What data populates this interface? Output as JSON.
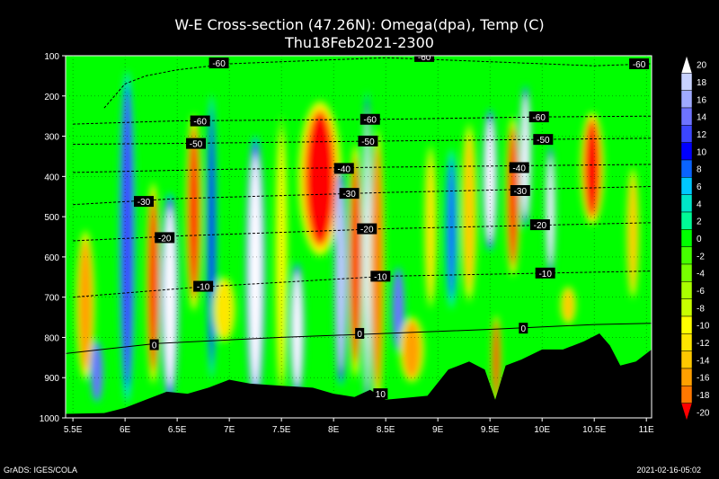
{
  "chart_data": {
    "type": "heatmap",
    "title": "W-E Cross-section (47.26N): Omega(dpa), Temp (C)",
    "subtitle": "Thu18Feb2021-2300",
    "xlabel": "",
    "ylabel": "",
    "x_ticks": [
      "5.5E",
      "6E",
      "6.5E",
      "7E",
      "7.5E",
      "8E",
      "8.5E",
      "9E",
      "9.5E",
      "10E",
      "10.5E",
      "11E"
    ],
    "x_range": [
      5.43,
      11.05
    ],
    "y_ticks": [
      100,
      200,
      300,
      400,
      500,
      600,
      700,
      800,
      900,
      1000
    ],
    "y_range": [
      1000,
      100
    ],
    "grid": true,
    "colorbar": {
      "levels": [
        20,
        18,
        16,
        14,
        12,
        10,
        8,
        6,
        4,
        2,
        0,
        -2,
        -4,
        -6,
        -8,
        -10,
        -12,
        -14,
        -16,
        -18,
        -20
      ],
      "colors": [
        "#ffffff",
        "#c8d2ff",
        "#a0aaff",
        "#6e73ff",
        "#3c46ff",
        "#0000ff",
        "#0a64ff",
        "#00c8ff",
        "#00e6c8",
        "#00fa96",
        "#00ff00",
        "#46ff00",
        "#78ff00",
        "#aaff00",
        "#c8ff00",
        "#ffff00",
        "#ffe600",
        "#ffc800",
        "#ffa000",
        "#ff7800",
        "#ff0000"
      ]
    },
    "omega_columns": [
      {
        "x": 5.62,
        "w": 0.12,
        "top": 560,
        "bottom": 880,
        "value": -16
      },
      {
        "x": 5.73,
        "w": 0.08,
        "top": 820,
        "bottom": 950,
        "value": 14
      },
      {
        "x": 6.02,
        "w": 0.1,
        "top": 200,
        "bottom": 900,
        "value": 12
      },
      {
        "x": 6.27,
        "w": 0.09,
        "top": 450,
        "bottom": 880,
        "value": -20
      },
      {
        "x": 6.43,
        "w": 0.11,
        "top": 480,
        "bottom": 920,
        "value": 20
      },
      {
        "x": 6.66,
        "w": 0.1,
        "top": 280,
        "bottom": 700,
        "value": -20
      },
      {
        "x": 6.83,
        "w": 0.06,
        "top": 250,
        "bottom": 850,
        "value": 10
      },
      {
        "x": 6.95,
        "w": 0.15,
        "top": 660,
        "bottom": 800,
        "value": -12
      },
      {
        "x": 7.25,
        "w": 0.12,
        "top": 350,
        "bottom": 920,
        "value": 20
      },
      {
        "x": 7.5,
        "w": 0.08,
        "top": 300,
        "bottom": 900,
        "value": -10
      },
      {
        "x": 7.65,
        "w": 0.09,
        "top": 640,
        "bottom": 920,
        "value": 20
      },
      {
        "x": 7.87,
        "w": 0.28,
        "top": 240,
        "bottom": 570,
        "value": -20
      },
      {
        "x": 8.07,
        "w": 0.08,
        "top": 420,
        "bottom": 880,
        "value": 18
      },
      {
        "x": 8.21,
        "w": 0.09,
        "top": 360,
        "bottom": 860,
        "value": -20
      },
      {
        "x": 8.32,
        "w": 0.05,
        "top": 250,
        "bottom": 930,
        "value": 20
      },
      {
        "x": 8.42,
        "w": 0.09,
        "top": 330,
        "bottom": 920,
        "value": -18
      },
      {
        "x": 8.62,
        "w": 0.08,
        "top": 640,
        "bottom": 820,
        "value": 14
      },
      {
        "x": 8.75,
        "w": 0.16,
        "top": 760,
        "bottom": 900,
        "value": -16
      },
      {
        "x": 8.93,
        "w": 0.08,
        "top": 350,
        "bottom": 700,
        "value": -12
      },
      {
        "x": 9.13,
        "w": 0.08,
        "top": 360,
        "bottom": 700,
        "value": 8
      },
      {
        "x": 9.3,
        "w": 0.1,
        "top": 300,
        "bottom": 680,
        "value": -14
      },
      {
        "x": 9.5,
        "w": 0.09,
        "top": 260,
        "bottom": 560,
        "value": 20
      },
      {
        "x": 9.56,
        "w": 0.06,
        "top": 760,
        "bottom": 950,
        "value": -20
      },
      {
        "x": 9.72,
        "w": 0.09,
        "top": 280,
        "bottom": 620,
        "value": -20
      },
      {
        "x": 9.84,
        "w": 0.07,
        "top": 200,
        "bottom": 500,
        "value": 20
      },
      {
        "x": 10.08,
        "w": 0.06,
        "top": 350,
        "bottom": 620,
        "value": 20
      },
      {
        "x": 10.25,
        "w": 0.1,
        "top": 680,
        "bottom": 760,
        "value": -14
      },
      {
        "x": 10.48,
        "w": 0.15,
        "top": 260,
        "bottom": 500,
        "value": -20
      },
      {
        "x": 10.87,
        "w": 0.08,
        "top": 400,
        "bottom": 680,
        "value": -14
      }
    ],
    "terrain": [
      [
        5.43,
        990
      ],
      [
        5.8,
        988
      ],
      [
        6.0,
        975
      ],
      [
        6.2,
        955
      ],
      [
        6.4,
        935
      ],
      [
        6.6,
        940
      ],
      [
        6.8,
        925
      ],
      [
        7.0,
        905
      ],
      [
        7.2,
        915
      ],
      [
        7.5,
        920
      ],
      [
        7.8,
        925
      ],
      [
        8.0,
        940
      ],
      [
        8.2,
        948
      ],
      [
        8.35,
        930
      ],
      [
        8.5,
        955
      ],
      [
        8.7,
        950
      ],
      [
        8.9,
        945
      ],
      [
        9.1,
        880
      ],
      [
        9.3,
        860
      ],
      [
        9.45,
        880
      ],
      [
        9.55,
        955
      ],
      [
        9.65,
        870
      ],
      [
        9.8,
        855
      ],
      [
        10.0,
        830
      ],
      [
        10.2,
        830
      ],
      [
        10.4,
        810
      ],
      [
        10.55,
        790
      ],
      [
        10.65,
        820
      ],
      [
        10.75,
        870
      ],
      [
        10.9,
        860
      ],
      [
        11.05,
        830
      ]
    ],
    "temp_contours": [
      {
        "label": "-60",
        "points": [
          [
            5.8,
            230
          ],
          [
            6.0,
            170
          ],
          [
            6.2,
            150
          ],
          [
            6.5,
            135
          ],
          [
            7.0,
            120
          ],
          [
            7.5,
            115
          ],
          [
            8.5,
            105
          ],
          [
            9.5,
            115
          ],
          [
            10.5,
            125
          ],
          [
            11.05,
            120
          ]
        ],
        "label_at": [
          6.9,
          118
        ]
      },
      {
        "label": "-60",
        "points": [
          [
            5.5,
            270
          ],
          [
            6.5,
            262
          ],
          [
            8.5,
            258
          ],
          [
            10.0,
            252
          ],
          [
            11.05,
            250
          ]
        ],
        "label_at": [
          6.72,
          262
        ]
      },
      {
        "label": "-50",
        "points": [
          [
            5.5,
            320
          ],
          [
            6.5,
            318
          ],
          [
            8.5,
            312
          ],
          [
            10.0,
            308
          ],
          [
            11.05,
            305
          ]
        ],
        "label_at": [
          6.68,
          318
        ]
      },
      {
        "label": "-40",
        "points": [
          [
            5.5,
            390
          ],
          [
            7.0,
            382
          ],
          [
            8.5,
            377
          ],
          [
            11.05,
            370
          ]
        ],
        "label_at": [
          8.1,
          380
        ]
      },
      {
        "label": "-30",
        "points": [
          [
            5.5,
            470
          ],
          [
            6.5,
            455
          ],
          [
            8.5,
            440
          ],
          [
            11.05,
            425
          ]
        ],
        "label_at": [
          6.18,
          462
        ]
      },
      {
        "label": "-20",
        "points": [
          [
            5.5,
            560
          ],
          [
            6.5,
            548
          ],
          [
            8.5,
            530
          ],
          [
            11.05,
            515
          ]
        ],
        "label_at": [
          6.38,
          552
        ]
      },
      {
        "label": "-10",
        "points": [
          [
            5.5,
            700
          ],
          [
            6.7,
            675
          ],
          [
            8.5,
            648
          ],
          [
            11.05,
            635
          ]
        ],
        "label_at": [
          6.75,
          673
        ]
      },
      {
        "label": "0",
        "points": [
          [
            5.43,
            840
          ],
          [
            6.3,
            815
          ],
          [
            7.5,
            800
          ],
          [
            8.5,
            790
          ],
          [
            9.5,
            780
          ],
          [
            10.5,
            768
          ],
          [
            11.05,
            765
          ]
        ],
        "label_at": [
          6.28,
          818
        ]
      }
    ],
    "contour_extra_labels": [
      {
        "label": "-60",
        "at": [
          8.87,
          102
        ]
      },
      {
        "label": "-60",
        "at": [
          10.93,
          120
        ]
      },
      {
        "label": "-60",
        "at": [
          8.35,
          258
        ]
      },
      {
        "label": "-60",
        "at": [
          9.97,
          252
        ]
      },
      {
        "label": "-50",
        "at": [
          8.33,
          312
        ]
      },
      {
        "label": "-50",
        "at": [
          10.01,
          308
        ]
      },
      {
        "label": "-40",
        "at": [
          9.78,
          378
        ]
      },
      {
        "label": "-30",
        "at": [
          8.15,
          442
        ]
      },
      {
        "label": "-30",
        "at": [
          9.79,
          435
        ]
      },
      {
        "label": "-20",
        "at": [
          8.32,
          530
        ]
      },
      {
        "label": "-20",
        "at": [
          9.98,
          520
        ]
      },
      {
        "label": "-10",
        "at": [
          8.45,
          648
        ]
      },
      {
        "label": "-10",
        "at": [
          10.03,
          640
        ]
      },
      {
        "label": "0",
        "at": [
          8.25,
          790
        ]
      },
      {
        "label": "0",
        "at": [
          9.82,
          777
        ]
      },
      {
        "label": "10",
        "at": [
          8.45,
          940
        ]
      }
    ]
  },
  "footer": {
    "left": "GrADS: IGES/COLA",
    "right": "2021-02-16-05:02"
  }
}
